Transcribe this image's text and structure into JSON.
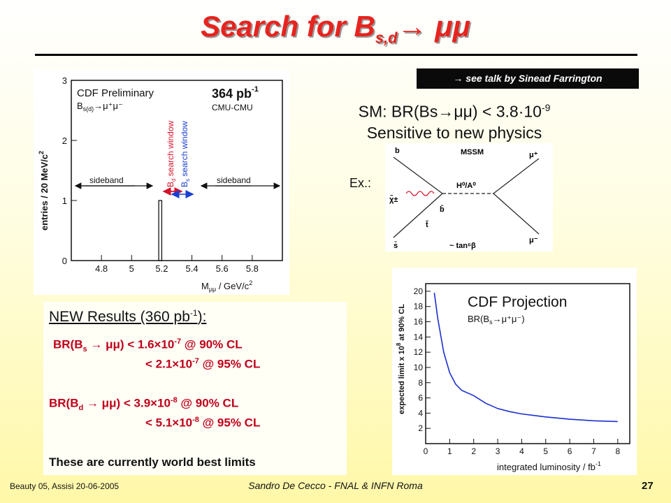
{
  "title": {
    "main": "Search for B",
    "sub": "s,d",
    "arrow": "→",
    "tail": "μμ"
  },
  "reference": "→ see talk by Sinead Farrington",
  "sm_line": "SM: BR(Bs→μμ) < 3.8·10",
  "sm_exp": "-9",
  "sensitive": "Sensitive to new physics",
  "ex_label": "Ex.:",
  "mssm_diagram": {
    "title": "MSSM",
    "b": "b",
    "bbar": "b̄",
    "sbar": "s̄",
    "chi": "χ̃±",
    "tilde_t": "t̃",
    "higgs": "H⁰/A⁰",
    "mu_plus": "μ⁺",
    "mu_minus": "μ⁻",
    "tan": "~ tan⁶β"
  },
  "left_plot": {
    "title": "CDF Preliminary",
    "channel": "B",
    "channel_sub": "s(d)",
    "channel_tail": "→μ⁺μ⁻",
    "lumi": "364 pb",
    "lumi_exp": "-1",
    "cmu": "CMU-CMU",
    "sideband_left": "sideband",
    "sideband_right": "sideband",
    "bd_window": "B",
    "bd_window_sub": "d",
    "bd_window_tail": " search window",
    "bs_window": "B",
    "bs_window_sub": "s",
    "bs_window_tail": " search window",
    "ylabel": "entries / 20 MeV/c",
    "ylabel_exp": "2",
    "xlabel": "M",
    "xlabel_sub": "μμ",
    "xlabel_tail": " / GeV/c",
    "xlabel_exp": "2",
    "colors": {
      "bd": "#d4122a",
      "bs": "#1a3fd1"
    }
  },
  "projection_plot": {
    "title": "CDF Projection",
    "br": "BR(B",
    "br_sub": "s",
    "br_tail": "→μ⁺μ⁻)",
    "ylabel": "expected limit x 10",
    "ylabel_exp": "8",
    "ylabel_tail": " at 90% CL",
    "xlabel": "integrated luminosity / fb",
    "xlabel_exp": "-1"
  },
  "results": {
    "heading": "NEW Results (360 pb",
    "heading_exp": "-1",
    "heading_tail": "):",
    "bs_label": "BR(B",
    "bs_sub": "s",
    "bs_tail": " → μμ) < 1.6×10",
    "bs_exp": "-7",
    "bs_cl": " @ 90% CL",
    "bs2": "< 2.1×10",
    "bs2_exp": "-7",
    "bs2_cl": " @ 95% CL",
    "bd_label": "BR(B",
    "bd_sub": "d",
    "bd_tail": " → μμ) < 3.9×10",
    "bd_exp": "-8",
    "bd_cl": " @ 90% CL",
    "bd2": "< 5.1×10",
    "bd2_exp": "-8",
    "bd2_cl": " @ 95% CL",
    "world_best": "These are currently world best limits"
  },
  "footer": {
    "left": "Beauty 05, Assisi 20-06-2005",
    "center": "Sandro De Cecco - FNAL & INFN Roma",
    "page": "27"
  },
  "chart_data": [
    {
      "type": "bar",
      "title": "CDF Preliminary",
      "xlabel": "Mμμ / GeV/c2",
      "ylabel": "entries / 20 MeV/c2",
      "xlim": [
        4.6,
        6.0
      ],
      "ylim": [
        0,
        3
      ],
      "x_ticks": [
        "4.8",
        "5",
        "5.2",
        "5.4",
        "5.6",
        "5.8"
      ],
      "y_ticks": [
        "0",
        "1",
        "2",
        "3"
      ],
      "bins": [
        {
          "x_low": 5.18,
          "x_high": 5.2,
          "value": 1
        }
      ],
      "annotations": [
        "sideband",
        "Bd search window",
        "Bs search window",
        "sideband",
        "364 pb-1",
        "CMU-CMU"
      ]
    },
    {
      "type": "line",
      "title": "CDF Projection",
      "xlabel": "integrated luminosity / fb-1",
      "ylabel": "expected limit x 10^8 at 90% CL",
      "xlim": [
        0,
        8.5
      ],
      "ylim": [
        0,
        21
      ],
      "x_ticks": [
        "0",
        "1",
        "2",
        "3",
        "4",
        "5",
        "6",
        "7",
        "8"
      ],
      "y_ticks": [
        "2",
        "4",
        "6",
        "8",
        "10",
        "12",
        "14",
        "16",
        "18",
        "20"
      ],
      "series": [
        {
          "x": [
            0.36,
            0.5,
            0.75,
            1.0,
            1.25,
            1.5,
            2.0,
            2.5,
            3.0,
            3.5,
            4.0,
            5.0,
            6.0,
            7.0,
            8.0
          ],
          "values": [
            19.8,
            16.5,
            12.0,
            9.3,
            7.8,
            7.0,
            6.3,
            5.3,
            4.6,
            4.2,
            3.9,
            3.5,
            3.2,
            3.0,
            2.9
          ]
        }
      ]
    }
  ]
}
